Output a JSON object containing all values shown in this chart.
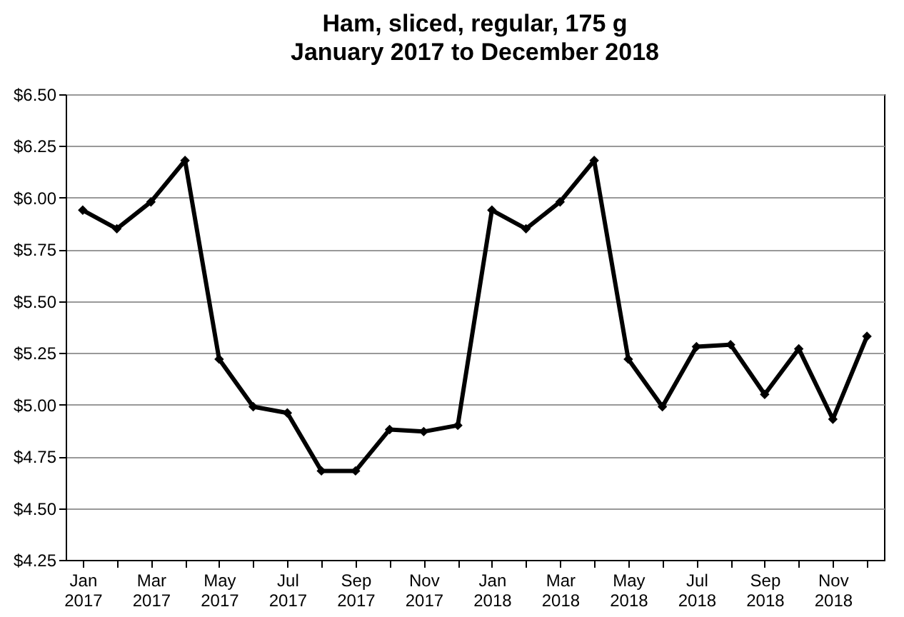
{
  "chart_data": {
    "type": "line",
    "title": "Ham, sliced, regular, 175 g",
    "subtitle": "January 2017 to December 2018",
    "categories": [
      "Jan 2017",
      null,
      "Mar 2017",
      null,
      "May 2017",
      null,
      "Jul 2017",
      null,
      "Sep 2017",
      null,
      "Nov 2017",
      null,
      "Jan 2018",
      null,
      "Mar 2018",
      null,
      "May 2018",
      null,
      "Jul 2018",
      null,
      "Sep 2018",
      null,
      "Nov 2018",
      null
    ],
    "series": [
      {
        "color": "#000000",
        "values": [
          5.94,
          5.85,
          5.98,
          6.18,
          5.22,
          4.99,
          4.96,
          4.68,
          4.68,
          4.88,
          4.87,
          4.9,
          5.94,
          5.85,
          5.98,
          6.18,
          5.22,
          4.99,
          5.28,
          5.29,
          5.05,
          5.27,
          4.93,
          5.33
        ]
      }
    ],
    "ylim": [
      4.25,
      6.5
    ],
    "yticks": [
      {
        "value": 4.25,
        "label": "$4.25"
      },
      {
        "value": 4.5,
        "label": "$4.50"
      },
      {
        "value": 4.75,
        "label": "$4.75"
      },
      {
        "value": 5.0,
        "label": "$5.00"
      },
      {
        "value": 5.25,
        "label": "$5.25"
      },
      {
        "value": 5.5,
        "label": "$5.50"
      },
      {
        "value": 5.75,
        "label": "$5.75"
      },
      {
        "value": 6.0,
        "label": "$6.00"
      },
      {
        "value": 6.25,
        "label": "$6.25"
      },
      {
        "value": 6.5,
        "label": "$6.50"
      }
    ],
    "grid": "y",
    "marker": "diamond",
    "line_style": "solid"
  }
}
